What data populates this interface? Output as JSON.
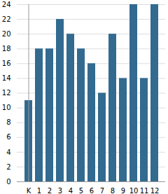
{
  "chart_data": {
    "type": "bar",
    "categories": [
      "K",
      "1",
      "2",
      "3",
      "4",
      "5",
      "6",
      "7",
      "8",
      "9",
      "10",
      "11",
      "12"
    ],
    "values": [
      11,
      18,
      18,
      22,
      20,
      18,
      16,
      12,
      20,
      14,
      24,
      14,
      24
    ],
    "color": "#336a90",
    "ylim": [
      0,
      24
    ],
    "yticks": [
      0,
      2,
      4,
      6,
      8,
      10,
      12,
      14,
      16,
      18,
      20,
      22,
      24
    ],
    "grid": true
  }
}
